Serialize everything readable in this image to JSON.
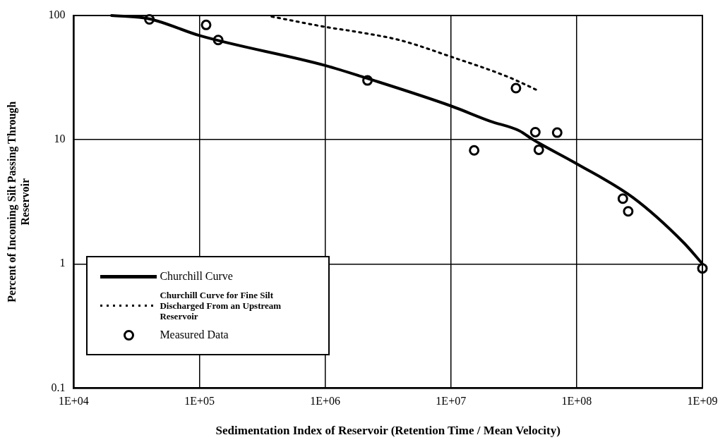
{
  "chart_data": {
    "type": "line",
    "xlabel": "Sedimentation Index of Reservoir (Retention Time / Mean Velocity)",
    "ylabel": "Percent of Incoming Silt Passing Through Reservoir",
    "log": "xy",
    "xlim": [
      10000,
      1000000000
    ],
    "ylim": [
      0.1,
      100
    ],
    "xticks": [
      {
        "value": 10000,
        "label": "1E+04"
      },
      {
        "value": 100000,
        "label": "1E+05"
      },
      {
        "value": 1000000,
        "label": "1E+06"
      },
      {
        "value": 10000000,
        "label": "1E+07"
      },
      {
        "value": 100000000,
        "label": "1E+08"
      },
      {
        "value": 1000000000,
        "label": "1E+09"
      }
    ],
    "yticks": [
      {
        "value": 0.1,
        "label": "0.1"
      },
      1,
      10,
      100
    ],
    "grid": true,
    "legend": "bottom left",
    "series": [
      {
        "name": "Churchill Curve",
        "color": "#000000",
        "line_style": "solid",
        "marker": "none",
        "x": [
          20000,
          40000,
          100000,
          1000000,
          2200000,
          10000000,
          20500000,
          35000000,
          45000000,
          100000000,
          280000000,
          710000000,
          1000000000
        ],
        "values": [
          100,
          94,
          69,
          39.6,
          31,
          18.7,
          14.1,
          11.8,
          10,
          6.4,
          3.42,
          1.48,
          1
        ]
      },
      {
        "name": "Churchill Curve for Fine Silt Discharged From an Upstream Reservoir",
        "color": "#000000",
        "line_style": "dotted",
        "marker": "none",
        "x": [
          375000,
          1000000,
          2000000,
          4000000,
          10000000,
          29000000,
          50000000
        ],
        "values": [
          98,
          81,
          72.5,
          63,
          46.6,
          31.8,
          24.7
        ]
      },
      {
        "name": "Measured Data",
        "type": "scatter",
        "color": "#000000",
        "marker": "circle",
        "x": [
          40000,
          113000,
          141000,
          2170000,
          32900000,
          15300000,
          46900000,
          70000000,
          50000000,
          233000000,
          257000000,
          1000000000
        ],
        "values": [
          93,
          84,
          63.5,
          30,
          26,
          8.2,
          11.5,
          11.4,
          8.3,
          3.35,
          2.65,
          0.92
        ]
      }
    ]
  }
}
